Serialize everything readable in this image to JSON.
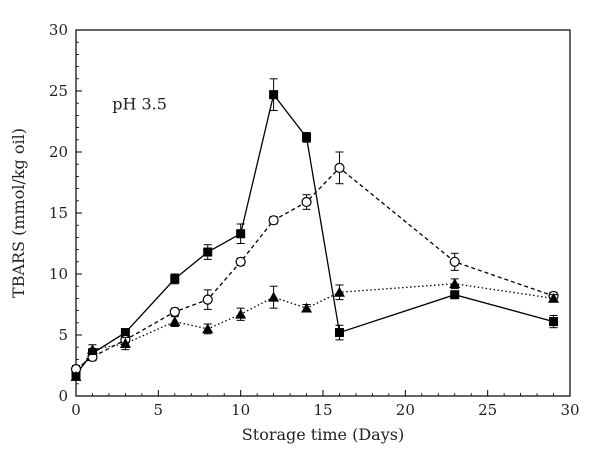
{
  "chart_data": {
    "type": "line",
    "title": "",
    "xlabel": "Storage time (Days)",
    "ylabel": "TBARS (mmol/kg oil)",
    "xlim": [
      0,
      30
    ],
    "ylim": [
      0,
      30
    ],
    "xticks": [
      0,
      5,
      10,
      15,
      20,
      25,
      30
    ],
    "yticks": [
      0,
      5,
      10,
      15,
      20,
      25,
      30
    ],
    "grid": false,
    "legend": "none",
    "annotations": [
      {
        "text": "pH 3.5",
        "x": 2.2,
        "y": 23.5
      }
    ],
    "series": [
      {
        "marker": "filled-square",
        "line_style": "solid",
        "color": "#000000",
        "points": [
          {
            "x": 0,
            "y": 1.8,
            "err": 0.3
          },
          {
            "x": 1,
            "y": 3.5,
            "err": 0.4
          },
          {
            "x": 3,
            "y": 5.2,
            "err": 0.3
          },
          {
            "x": 6,
            "y": 9.6,
            "err": 0.4
          },
          {
            "x": 8,
            "y": 11.8,
            "err": 0.6
          },
          {
            "x": 10,
            "y": 13.3,
            "err": 0.8
          },
          {
            "x": 12,
            "y": 24.7,
            "err": 1.3
          },
          {
            "x": 14,
            "y": 21.2,
            "err": 0.4
          },
          {
            "x": 16,
            "y": 5.2,
            "err": 0.6
          },
          {
            "x": 23,
            "y": 8.3,
            "err": 0.3
          },
          {
            "x": 29,
            "y": 6.1,
            "err": 0.5
          }
        ]
      },
      {
        "marker": "open-circle",
        "line_style": "dashed",
        "color": "#000000",
        "points": [
          {
            "x": 0,
            "y": 2.2,
            "err": 0.3
          },
          {
            "x": 1,
            "y": 3.2,
            "err": 0.3
          },
          {
            "x": 3,
            "y": 4.6,
            "err": 0.4
          },
          {
            "x": 6,
            "y": 6.9,
            "err": 0.3
          },
          {
            "x": 8,
            "y": 7.9,
            "err": 0.8
          },
          {
            "x": 10,
            "y": 11.0,
            "err": 0.3
          },
          {
            "x": 12,
            "y": 14.4,
            "err": 0.3
          },
          {
            "x": 14,
            "y": 15.9,
            "err": 0.6
          },
          {
            "x": 16,
            "y": 18.7,
            "err": 1.3
          },
          {
            "x": 23,
            "y": 11.0,
            "err": 0.7
          },
          {
            "x": 29,
            "y": 8.2,
            "err": 0.3
          }
        ]
      },
      {
        "marker": "filled-triangle",
        "line_style": "dotted",
        "color": "#000000",
        "points": [
          {
            "x": 0,
            "y": 1.6,
            "err": 0.3
          },
          {
            "x": 1,
            "y": 3.8,
            "err": 0.4
          },
          {
            "x": 3,
            "y": 4.3,
            "err": 0.5
          },
          {
            "x": 6,
            "y": 6.1,
            "err": 0.4
          },
          {
            "x": 8,
            "y": 5.5,
            "err": 0.4
          },
          {
            "x": 10,
            "y": 6.7,
            "err": 0.5
          },
          {
            "x": 12,
            "y": 8.1,
            "err": 0.9
          },
          {
            "x": 14,
            "y": 7.2,
            "err": 0.3
          },
          {
            "x": 16,
            "y": 8.5,
            "err": 0.6
          },
          {
            "x": 23,
            "y": 9.2,
            "err": 0.4
          },
          {
            "x": 29,
            "y": 8.0,
            "err": 0.3
          }
        ]
      }
    ]
  }
}
